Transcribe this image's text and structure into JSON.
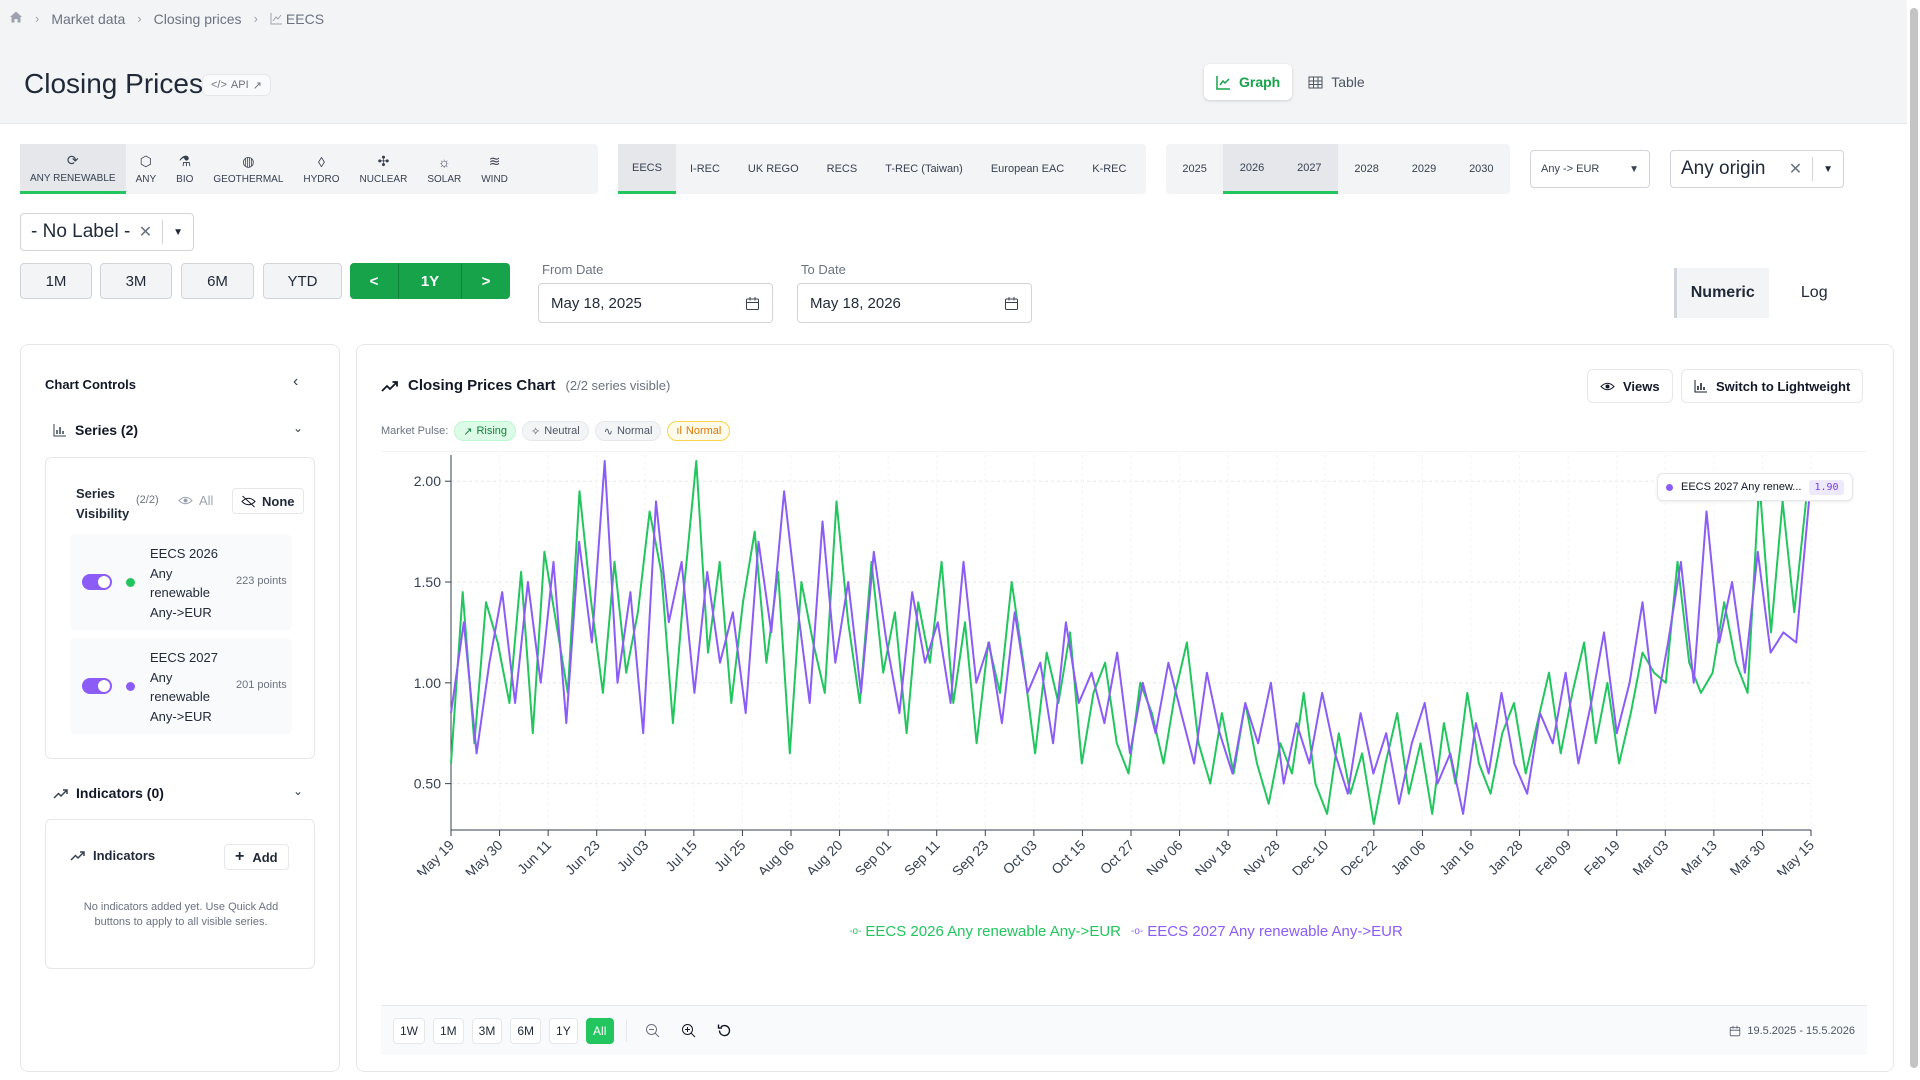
{
  "breadcrumb": {
    "items": [
      "Market data",
      "Closing prices",
      "EECS"
    ]
  },
  "header": {
    "title": "Closing Prices",
    "api_label": "API"
  },
  "view_toggle": {
    "graph": "Graph",
    "table": "Table",
    "active": "Graph"
  },
  "technologies": [
    {
      "label": "ANY RENEWABLE",
      "icon": "refresh-icon",
      "selected": true
    },
    {
      "label": "ANY",
      "icon": "cube-icon"
    },
    {
      "label": "BIO",
      "icon": "flask-icon"
    },
    {
      "label": "GEOTHERMAL",
      "icon": "globe-icon"
    },
    {
      "label": "HYDRO",
      "icon": "droplet-icon"
    },
    {
      "label": "NUCLEAR",
      "icon": "atom-icon"
    },
    {
      "label": "SOLAR",
      "icon": "sun-icon"
    },
    {
      "label": "WIND",
      "icon": "wind-icon"
    }
  ],
  "certificates": [
    {
      "label": "EECS",
      "selected": true
    },
    {
      "label": "I-REC"
    },
    {
      "label": "UK REGO"
    },
    {
      "label": "RECS"
    },
    {
      "label": "T-REC (Taiwan)"
    },
    {
      "label": "European EAC"
    },
    {
      "label": "K-REC"
    }
  ],
  "years": [
    {
      "label": "2025"
    },
    {
      "label": "2026",
      "selected": true
    },
    {
      "label": "2027",
      "selected": true
    },
    {
      "label": "2028"
    },
    {
      "label": "2029"
    },
    {
      "label": "2030"
    }
  ],
  "currency_select": {
    "value": "Any -> EUR"
  },
  "origin_select": {
    "value": "Any origin"
  },
  "label_select": {
    "value": "- No Label -"
  },
  "range_buttons": {
    "m1": "1M",
    "m3": "3M",
    "m6": "6M",
    "ytd": "YTD",
    "prev": "<",
    "y1": "1Y",
    "next": ">"
  },
  "dates": {
    "from_label": "From Date",
    "from_value": "May 18, 2025",
    "to_label": "To Date",
    "to_value": "May 18, 2026"
  },
  "scale": {
    "numeric": "Numeric",
    "log": "Log",
    "active": "Numeric"
  },
  "controls": {
    "title": "Chart Controls",
    "series_header": "Series (2)",
    "visibility_label": "Series Visibility",
    "visibility_count": "(2/2)",
    "all_label": "All",
    "none_label": "None",
    "series": [
      {
        "name": "EECS 2026 Any renewable Any->EUR",
        "points": "223 points",
        "color": "#22c55e"
      },
      {
        "name": "EECS 2027 Any renewable Any->EUR",
        "points": "201 points",
        "color": "#8b5cf6"
      }
    ],
    "indicators_header": "Indicators (0)",
    "indicators_title": "Indicators",
    "add_label": "Add",
    "empty_text": "No indicators added yet. Use Quick Add buttons to apply to all visible series."
  },
  "chart_card": {
    "title": "Closing Prices Chart",
    "subtitle": "(2/2 series visible)",
    "views_label": "Views",
    "lightweight_label": "Switch to Lightweight",
    "pulse_label": "Market Pulse:",
    "pulses": [
      {
        "label": "Rising",
        "bg": "#dcfce7",
        "fg": "#15803d",
        "border": "#bbf7d0"
      },
      {
        "label": "Neutral",
        "bg": "#f3f4f6",
        "fg": "#4b5563",
        "border": "#e5e7eb"
      },
      {
        "label": "Normal",
        "bg": "#f3f4f6",
        "fg": "#4b5563",
        "border": "#e5e7eb"
      },
      {
        "label": "Normal",
        "bg": "#fffbeb",
        "fg": "#d97706",
        "border": "#fcd34d"
      }
    ],
    "tooltip_name": "EECS 2027 Any renew...",
    "tooltip_value": "1.90",
    "bottom_ranges": [
      "1W",
      "1M",
      "3M",
      "6M",
      "1Y",
      "All"
    ],
    "active_range": "All",
    "date_range": "19.5.2025 - 15.5.2026"
  },
  "chart_data": {
    "type": "line",
    "x_labels": [
      "May 19",
      "May 30",
      "Jun 11",
      "Jun 23",
      "Jul 03",
      "Jul 15",
      "Jul 25",
      "Aug 06",
      "Aug 20",
      "Sep 01",
      "Sep 11",
      "Sep 23",
      "Oct 03",
      "Oct 15",
      "Oct 27",
      "Nov 06",
      "Nov 18",
      "Nov 28",
      "Dec 10",
      "Dec 22",
      "Jan 06",
      "Jan 16",
      "Jan 28",
      "Feb 09",
      "Feb 19",
      "Mar 03",
      "Mar 13",
      "Mar 30",
      "May 15"
    ],
    "y_ticks": [
      0.5,
      1.0,
      1.5,
      2.0
    ],
    "ylim": [
      0.27,
      2.13
    ],
    "grid": true,
    "legend_position": "bottom",
    "series": [
      {
        "name": "EECS 2026 Any renewable Any->EUR",
        "color": "#22c55e",
        "values": [
          0.6,
          1.45,
          0.7,
          1.4,
          1.2,
          0.9,
          1.55,
          0.75,
          1.65,
          1.3,
          0.95,
          1.95,
          1.4,
          0.95,
          1.6,
          1.05,
          1.35,
          1.85,
          1.55,
          0.8,
          1.5,
          2.1,
          1.15,
          1.6,
          0.9,
          1.4,
          1.75,
          1.1,
          1.55,
          0.65,
          1.5,
          1.2,
          0.95,
          1.9,
          1.3,
          0.9,
          1.6,
          1.05,
          1.35,
          0.75,
          1.4,
          1.1,
          1.6,
          0.9,
          1.3,
          0.7,
          1.2,
          0.95,
          1.5,
          1.1,
          0.65,
          1.15,
          0.9,
          1.25,
          0.6,
          0.95,
          1.1,
          0.7,
          0.55,
          1.0,
          0.85,
          0.6,
          0.95,
          1.2,
          0.7,
          0.5,
          0.85,
          0.55,
          0.9,
          0.6,
          0.4,
          0.7,
          0.55,
          0.95,
          0.5,
          0.35,
          0.75,
          0.45,
          0.65,
          0.3,
          0.6,
          0.85,
          0.45,
          0.7,
          0.35,
          0.8,
          0.5,
          0.95,
          0.6,
          0.45,
          0.75,
          0.9,
          0.55,
          0.8,
          1.05,
          0.65,
          0.95,
          1.2,
          0.7,
          1.0,
          0.6,
          0.85,
          1.15,
          1.05,
          1.0,
          1.6,
          1.1,
          0.95,
          1.05,
          1.4,
          1.1,
          0.95,
          2.0,
          1.25,
          1.9,
          1.35,
          1.9
        ]
      },
      {
        "name": "EECS 2027 Any renewable Any->EUR",
        "color": "#8b5cf6",
        "values": [
          0.85,
          1.3,
          0.65,
          1.1,
          1.45,
          0.9,
          1.5,
          1.0,
          1.6,
          0.8,
          1.7,
          1.2,
          2.1,
          1.0,
          1.45,
          0.75,
          1.9,
          1.3,
          1.6,
          0.95,
          1.55,
          1.1,
          1.35,
          0.85,
          1.7,
          1.25,
          1.95,
          1.4,
          0.9,
          1.8,
          1.1,
          1.5,
          0.95,
          1.65,
          1.2,
          0.85,
          1.45,
          1.1,
          1.3,
          0.9,
          1.6,
          1.0,
          1.2,
          0.8,
          1.35,
          0.95,
          1.1,
          0.7,
          1.3,
          0.9,
          1.05,
          0.8,
          1.15,
          0.65,
          1.0,
          0.75,
          1.1,
          0.85,
          0.6,
          1.05,
          0.75,
          0.55,
          0.9,
          0.7,
          1.0,
          0.5,
          0.8,
          0.6,
          0.95,
          0.65,
          0.45,
          0.85,
          0.55,
          0.75,
          0.4,
          0.7,
          0.9,
          0.5,
          0.65,
          0.35,
          0.8,
          0.55,
          0.95,
          0.6,
          0.45,
          0.85,
          0.7,
          1.05,
          0.6,
          0.9,
          1.25,
          0.75,
          1.0,
          1.4,
          0.85,
          1.2,
          1.6,
          1.0,
          1.85,
          1.2,
          1.5,
          1.05,
          1.65,
          1.15,
          1.25,
          1.2,
          1.9
        ]
      }
    ]
  }
}
